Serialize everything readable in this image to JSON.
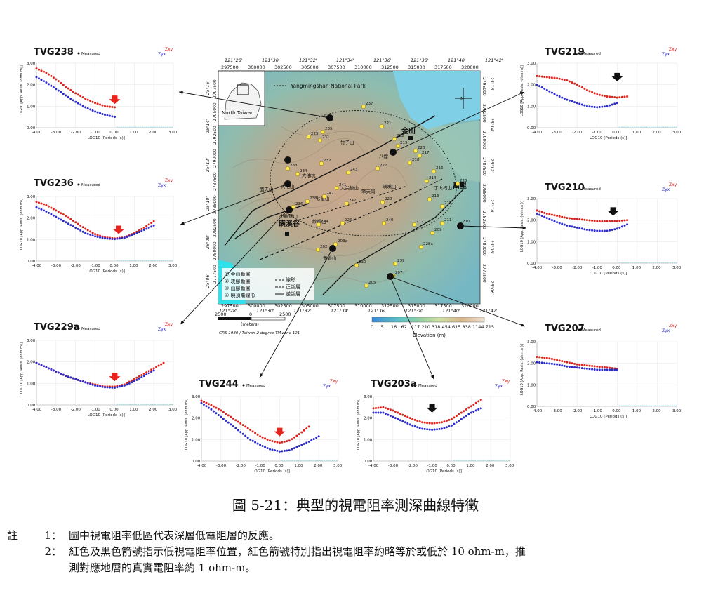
{
  "map": {
    "park_label": "Yangmingshan National Park",
    "inset_label": "North Taiwan",
    "top_lon_ticks": [
      "121°28'",
      "121°30'",
      "121°32'",
      "121°34'",
      "121°36'",
      "121°38'",
      "121°40'",
      "121°42'"
    ],
    "top_east_ticks": [
      "297500",
      "300000",
      "302500",
      "305000",
      "307500",
      "310000",
      "312500",
      "315000",
      "317500",
      "320000"
    ],
    "left_lat_ticks": [
      "25°16'",
      "25°14'",
      "25°12'",
      "25°10'",
      "25°08'",
      "25°06'"
    ],
    "left_north_ticks": [
      "2797500",
      "2795000",
      "2792500",
      "2790000",
      "2787500",
      "2785000",
      "2782500",
      "2780000",
      "2777500"
    ],
    "right_north_ticks": [
      "2795000",
      "2792500",
      "2790000",
      "2787500",
      "2785000",
      "2782500",
      "2780000",
      "2777500"
    ],
    "right_lat_ticks": [
      "25°16'",
      "25°14'",
      "25°12'",
      "25°10'",
      "25°08'",
      "25°06'"
    ],
    "scale_ticks": [
      "2500",
      "0",
      "2500"
    ],
    "scale_unit": "(meters)",
    "datum": "GRS 1980 / Taiwan 2-degree TM zone 121",
    "elevation_values": [
      "0",
      "5",
      "16",
      "62",
      "117",
      "210",
      "318",
      "454",
      "615",
      "838",
      "1144",
      "1715"
    ],
    "elevation_label": "Elevation (m)",
    "place_labels": [
      "金山",
      "萬里",
      "磺溪谷",
      "七星山",
      "大屯山",
      "竹子山",
      "大油坑",
      "八煙",
      "小觀音山",
      "面天山",
      "紗帽山",
      "擎天崗",
      "丁火朽山",
      "大尖後山",
      "磺嘴山",
      "菁礐山"
    ],
    "station_numbers": [
      "237",
      "221",
      "225",
      "231",
      "219",
      "220",
      "217",
      "218",
      "216",
      "214",
      "215",
      "213",
      "212",
      "211",
      "233",
      "234",
      "232",
      "227",
      "243",
      "241",
      "242",
      "247",
      "229",
      "226",
      "240",
      "236",
      "238",
      "244",
      "203a",
      "202",
      "239",
      "209",
      "228a",
      "205",
      "207",
      "223",
      "230",
      "210",
      "235",
      "222"
    ],
    "legend": {
      "faults": [
        "① 金山斷層",
        "② 崁腳斷層",
        "③ 山腳斷層",
        "④ 嶼頂崙線形"
      ],
      "symbols": [
        "線形",
        "正斷層",
        "逆斷層"
      ]
    }
  },
  "panel_common": {
    "measured": "Measured",
    "zxy": "Zxy",
    "zyx": "Zyx",
    "ylabel": "LOG10 [App. Resis. (ohm.m)]",
    "xlabel": "LOG10 [Periods (s)]",
    "xticks": [
      "-4.00",
      "-3.00",
      "-2.00",
      "-1.00",
      "0.00",
      "1.00",
      "2.00",
      "3.00"
    ],
    "yticks": [
      "0.00",
      "1.00",
      "2.00",
      "3.00"
    ],
    "colors": {
      "zxy": "#e0201a",
      "zyx": "#2a2ad0",
      "arrow_red": "#e8231b",
      "arrow_black": "#111111"
    }
  },
  "chart_data": [
    {
      "type": "scatter",
      "title": "TVG238",
      "arrow": "red",
      "arrow_at": [
        0.0,
        1.3
      ],
      "xlim": [
        -4,
        3
      ],
      "ylim": [
        0,
        3
      ],
      "series": [
        {
          "name": "Zxy",
          "x": [
            -4.0,
            -3.5,
            -3.0,
            -2.5,
            -2.0,
            -1.5,
            -1.0,
            -0.5,
            0.0
          ],
          "y": [
            2.75,
            2.55,
            2.25,
            1.9,
            1.6,
            1.35,
            1.15,
            1.0,
            0.95
          ]
        },
        {
          "name": "Zyx",
          "x": [
            -4.0,
            -3.5,
            -3.0,
            -2.5,
            -2.0,
            -1.5,
            -1.0,
            -0.5,
            0.0
          ],
          "y": [
            2.35,
            2.1,
            1.8,
            1.5,
            1.2,
            0.95,
            0.75,
            0.6,
            0.5
          ]
        }
      ]
    },
    {
      "type": "scatter",
      "title": "TVG236",
      "arrow": "red",
      "arrow_at": [
        0.2,
        1.45
      ],
      "xlim": [
        -4,
        3
      ],
      "ylim": [
        0,
        3
      ],
      "series": [
        {
          "name": "Zxy",
          "x": [
            -4.0,
            -3.5,
            -3.0,
            -2.5,
            -2.0,
            -1.5,
            -1.0,
            -0.5,
            0.0,
            0.5,
            1.0,
            1.5,
            2.0
          ],
          "y": [
            2.75,
            2.6,
            2.35,
            2.1,
            1.8,
            1.5,
            1.25,
            1.1,
            1.05,
            1.1,
            1.3,
            1.55,
            1.85
          ]
        },
        {
          "name": "Zyx",
          "x": [
            -4.0,
            -3.5,
            -3.0,
            -2.5,
            -2.0,
            -1.5,
            -1.0,
            -0.5,
            0.0,
            0.5,
            1.0,
            1.5,
            2.0
          ],
          "y": [
            2.5,
            2.3,
            2.05,
            1.8,
            1.55,
            1.3,
            1.15,
            1.05,
            1.02,
            1.08,
            1.25,
            1.45,
            1.65
          ]
        }
      ]
    },
    {
      "type": "scatter",
      "title": "TVG229a",
      "arrow": "red",
      "arrow_at": [
        0.0,
        1.3
      ],
      "xlim": [
        -4,
        3
      ],
      "ylim": [
        0,
        3
      ],
      "series": [
        {
          "name": "Zxy",
          "x": [
            -4.0,
            -3.5,
            -3.0,
            -2.5,
            -2.0,
            -1.5,
            -1.0,
            -0.5,
            0.0,
            0.5,
            1.0,
            1.5,
            2.0,
            2.5
          ],
          "y": [
            1.95,
            1.75,
            1.55,
            1.35,
            1.2,
            1.05,
            0.95,
            0.85,
            0.85,
            0.95,
            1.2,
            1.45,
            1.7,
            1.95
          ]
        },
        {
          "name": "Zyx",
          "x": [
            -4.0,
            -3.5,
            -3.0,
            -2.5,
            -2.0,
            -1.5,
            -1.0,
            -0.5,
            0.0,
            0.5,
            1.0,
            1.5,
            2.0
          ],
          "y": [
            1.95,
            1.75,
            1.55,
            1.35,
            1.2,
            1.05,
            0.9,
            0.82,
            0.8,
            0.9,
            1.1,
            1.35,
            1.6
          ]
        }
      ]
    },
    {
      "type": "scatter",
      "title": "TVG244",
      "arrow": "red",
      "arrow_at": [
        0.0,
        1.35
      ],
      "xlim": [
        -4,
        3
      ],
      "ylim": [
        0,
        3
      ],
      "series": [
        {
          "name": "Zxy",
          "x": [
            -4.0,
            -3.5,
            -3.0,
            -2.5,
            -2.0,
            -1.5,
            -1.0,
            -0.5,
            0.0,
            0.5,
            1.0,
            1.5
          ],
          "y": [
            2.8,
            2.6,
            2.35,
            2.05,
            1.75,
            1.45,
            1.15,
            0.95,
            0.85,
            0.95,
            1.25,
            1.6
          ]
        },
        {
          "name": "Zyx",
          "x": [
            -4.0,
            -3.5,
            -3.0,
            -2.5,
            -2.0,
            -1.5,
            -1.0,
            -0.5,
            0.0,
            0.5,
            1.0,
            1.5,
            2.0
          ],
          "y": [
            2.7,
            2.4,
            2.05,
            1.7,
            1.35,
            1.0,
            0.75,
            0.55,
            0.45,
            0.5,
            0.7,
            0.9,
            1.15
          ]
        }
      ]
    },
    {
      "type": "scatter",
      "title": "TVG203a",
      "arrow": "black",
      "arrow_at": [
        -1.0,
        2.45
      ],
      "xlim": [
        -4,
        3
      ],
      "ylim": [
        0,
        3
      ],
      "series": [
        {
          "name": "Zxy",
          "x": [
            -4.0,
            -3.5,
            -3.0,
            -2.5,
            -2.0,
            -1.5,
            -1.0,
            -0.5,
            0.0,
            0.5,
            1.0,
            1.5
          ],
          "y": [
            2.45,
            2.5,
            2.35,
            2.15,
            1.95,
            1.8,
            1.75,
            1.8,
            1.95,
            2.25,
            2.55,
            2.85
          ]
        },
        {
          "name": "Zyx",
          "x": [
            -4.0,
            -3.5,
            -3.0,
            -2.5,
            -2.0,
            -1.5,
            -1.0,
            -0.5,
            0.0,
            0.5,
            1.0,
            1.5
          ],
          "y": [
            2.25,
            2.25,
            2.05,
            1.85,
            1.65,
            1.5,
            1.45,
            1.5,
            1.65,
            1.95,
            2.25,
            2.45
          ]
        }
      ]
    },
    {
      "type": "scatter",
      "title": "TVG219",
      "arrow": "black",
      "arrow_at": [
        0.0,
        2.35
      ],
      "xlim": [
        -4,
        3
      ],
      "ylim": [
        0,
        3
      ],
      "series": [
        {
          "name": "Zxy",
          "x": [
            -4.0,
            -3.5,
            -3.0,
            -2.5,
            -2.0,
            -1.5,
            -1.0,
            -0.5,
            0.0,
            0.5
          ],
          "y": [
            2.4,
            2.35,
            2.3,
            2.2,
            2.0,
            1.75,
            1.55,
            1.45,
            1.4,
            1.45
          ]
        },
        {
          "name": "Zyx",
          "x": [
            -4.0,
            -3.5,
            -3.0,
            -2.5,
            -2.0,
            -1.5,
            -1.0,
            -0.5,
            0.0
          ],
          "y": [
            2.0,
            1.75,
            1.5,
            1.3,
            1.15,
            1.0,
            0.95,
            1.0,
            1.15
          ]
        }
      ]
    },
    {
      "type": "scatter",
      "title": "TVG210",
      "arrow": "black",
      "arrow_at": [
        -0.2,
        2.4
      ],
      "xlim": [
        -4,
        3
      ],
      "ylim": [
        0,
        3
      ],
      "series": [
        {
          "name": "Zxy",
          "x": [
            -4.0,
            -3.5,
            -3.0,
            -2.5,
            -2.0,
            -1.5,
            -1.0,
            -0.5,
            0.0,
            0.5
          ],
          "y": [
            2.45,
            2.3,
            2.2,
            2.1,
            2.05,
            2.0,
            1.95,
            1.95,
            1.95,
            2.0
          ]
        },
        {
          "name": "Zyx",
          "x": [
            -4.0,
            -3.5,
            -3.0,
            -2.5,
            -2.0,
            -1.5,
            -1.0,
            -0.5,
            0.0,
            0.5
          ],
          "y": [
            2.3,
            2.1,
            1.9,
            1.75,
            1.65,
            1.55,
            1.5,
            1.5,
            1.6,
            1.8
          ]
        }
      ]
    },
    {
      "type": "scatter",
      "title": "TVG207",
      "xlim": [
        -4,
        3
      ],
      "ylim": [
        0,
        3
      ],
      "series": [
        {
          "name": "Zxy",
          "x": [
            -4.0,
            -3.5,
            -3.0,
            -2.5,
            -2.0,
            -1.5,
            -1.0,
            -0.5,
            0.0
          ],
          "y": [
            2.3,
            2.25,
            2.15,
            2.05,
            1.95,
            1.9,
            1.85,
            1.8,
            1.75
          ]
        },
        {
          "name": "Zyx",
          "x": [
            -4.0,
            -3.5,
            -3.0,
            -2.5,
            -2.0,
            -1.5,
            -1.0,
            -0.5,
            0.0
          ],
          "y": [
            2.05,
            2.0,
            1.95,
            1.85,
            1.8,
            1.75,
            1.7,
            1.7,
            1.7
          ]
        }
      ]
    }
  ],
  "caption": "圖 5-21：典型的視電阻率測深曲線特徵",
  "notes": {
    "label": "註",
    "items": [
      {
        "num": "1：",
        "text": "圖中視電阻率低區代表深層低電阻層的反應。"
      },
      {
        "num": "2：",
        "text": "紅色及黑色箭號指示低視電阻率位置，紅色箭號特別指出視電阻率約略等於或低於 10 ohm-m，推",
        "cont": "測對應地層的真實電阻率約 1 ohm-m。"
      }
    ]
  }
}
